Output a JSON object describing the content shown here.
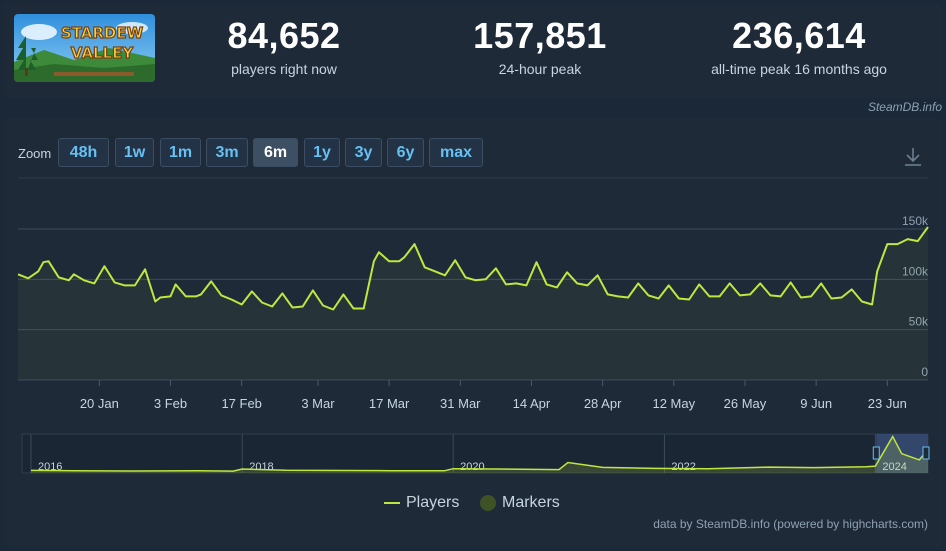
{
  "header": {
    "logo_alt": "STARDEW VALLEY",
    "logo_line1": "STARDEW",
    "logo_line2": "VALLEY",
    "stats": [
      {
        "value": "84,652",
        "label": "players right now"
      },
      {
        "value": "157,851",
        "label": "24-hour peak"
      },
      {
        "value": "236,614",
        "label": "all-time peak 16 months ago"
      }
    ],
    "site_credit": "SteamDB.info"
  },
  "zoom": {
    "label": "Zoom",
    "buttons": [
      "48h",
      "1w",
      "1m",
      "3m",
      "6m",
      "1y",
      "3y",
      "6y",
      "max"
    ],
    "active": "6m"
  },
  "colors": {
    "series": "#c0e640",
    "accent": "#66c0f4",
    "navigator_selection": "#3a4f7a"
  },
  "chart_data": {
    "type": "line",
    "title": "",
    "xlabel": "",
    "ylabel": "",
    "series": [
      {
        "name": "Players",
        "points": [
          [
            "2024-01-04",
            105000
          ],
          [
            "2024-01-06",
            101000
          ],
          [
            "2024-01-08",
            108000
          ],
          [
            "2024-01-09",
            117000
          ],
          [
            "2024-01-10",
            118000
          ],
          [
            "2024-01-12",
            102000
          ],
          [
            "2024-01-14",
            99000
          ],
          [
            "2024-01-15",
            105000
          ],
          [
            "2024-01-17",
            99000
          ],
          [
            "2024-01-19",
            96000
          ],
          [
            "2024-01-21",
            113000
          ],
          [
            "2024-01-23",
            97000
          ],
          [
            "2024-01-25",
            94000
          ],
          [
            "2024-01-27",
            94000
          ],
          [
            "2024-01-29",
            110000
          ],
          [
            "2024-01-31",
            78000
          ],
          [
            "2024-02-01",
            82000
          ],
          [
            "2024-02-03",
            83000
          ],
          [
            "2024-02-04",
            95000
          ],
          [
            "2024-02-06",
            83000
          ],
          [
            "2024-02-08",
            83000
          ],
          [
            "2024-02-09",
            85000
          ],
          [
            "2024-02-11",
            98000
          ],
          [
            "2024-02-13",
            84000
          ],
          [
            "2024-02-15",
            80000
          ],
          [
            "2024-02-17",
            75000
          ],
          [
            "2024-02-19",
            88000
          ],
          [
            "2024-02-21",
            77000
          ],
          [
            "2024-02-23",
            73000
          ],
          [
            "2024-02-25",
            86000
          ],
          [
            "2024-02-27",
            72000
          ],
          [
            "2024-02-29",
            73000
          ],
          [
            "2024-03-02",
            89000
          ],
          [
            "2024-03-04",
            74000
          ],
          [
            "2024-03-06",
            70000
          ],
          [
            "2024-03-08",
            85000
          ],
          [
            "2024-03-10",
            71000
          ],
          [
            "2024-03-12",
            71000
          ],
          [
            "2024-03-14",
            118000
          ],
          [
            "2024-03-15",
            127000
          ],
          [
            "2024-03-17",
            118000
          ],
          [
            "2024-03-19",
            118000
          ],
          [
            "2024-03-20",
            122000
          ],
          [
            "2024-03-22",
            135000
          ],
          [
            "2024-03-24",
            112000
          ],
          [
            "2024-03-26",
            108000
          ],
          [
            "2024-03-28",
            104000
          ],
          [
            "2024-03-30",
            119000
          ],
          [
            "2024-04-01",
            102000
          ],
          [
            "2024-04-03",
            99000
          ],
          [
            "2024-04-05",
            100000
          ],
          [
            "2024-04-07",
            111000
          ],
          [
            "2024-04-09",
            95000
          ],
          [
            "2024-04-11",
            96000
          ],
          [
            "2024-04-13",
            94000
          ],
          [
            "2024-04-15",
            117000
          ],
          [
            "2024-04-17",
            95000
          ],
          [
            "2024-04-19",
            92000
          ],
          [
            "2024-04-21",
            107000
          ],
          [
            "2024-04-23",
            96000
          ],
          [
            "2024-04-25",
            94000
          ],
          [
            "2024-04-27",
            104000
          ],
          [
            "2024-04-29",
            85000
          ],
          [
            "2024-05-01",
            83000
          ],
          [
            "2024-05-03",
            82000
          ],
          [
            "2024-05-05",
            96000
          ],
          [
            "2024-05-07",
            84000
          ],
          [
            "2024-05-09",
            81000
          ],
          [
            "2024-05-11",
            94000
          ],
          [
            "2024-05-13",
            81000
          ],
          [
            "2024-05-15",
            80000
          ],
          [
            "2024-05-17",
            95000
          ],
          [
            "2024-05-19",
            83000
          ],
          [
            "2024-05-21",
            83000
          ],
          [
            "2024-05-23",
            96000
          ],
          [
            "2024-05-25",
            84000
          ],
          [
            "2024-05-27",
            85000
          ],
          [
            "2024-05-29",
            96000
          ],
          [
            "2024-05-31",
            84000
          ],
          [
            "2024-06-02",
            83000
          ],
          [
            "2024-06-04",
            97000
          ],
          [
            "2024-06-06",
            82000
          ],
          [
            "2024-06-08",
            83000
          ],
          [
            "2024-06-10",
            96000
          ],
          [
            "2024-06-12",
            81000
          ],
          [
            "2024-06-14",
            82000
          ],
          [
            "2024-06-16",
            90000
          ],
          [
            "2024-06-18",
            78000
          ],
          [
            "2024-06-20",
            75000
          ],
          [
            "2024-06-21",
            108000
          ],
          [
            "2024-06-23",
            135000
          ],
          [
            "2024-06-25",
            135000
          ],
          [
            "2024-06-27",
            140000
          ],
          [
            "2024-06-29",
            138000
          ],
          [
            "2024-07-01",
            152000
          ]
        ]
      }
    ],
    "x_ticks": [
      "20 Jan",
      "3 Feb",
      "17 Feb",
      "3 Mar",
      "17 Mar",
      "31 Mar",
      "14 Apr",
      "28 Apr",
      "12 May",
      "26 May",
      "9 Jun",
      "23 Jun"
    ],
    "y_ticks": [
      "0",
      "50k",
      "100k",
      "150k"
    ],
    "ylim": [
      0,
      150000
    ],
    "grid": true,
    "navigator": {
      "x_ticks": [
        "2016",
        "2018",
        "2020",
        "2022",
        "2024"
      ],
      "points": [
        [
          "2016-01",
          17000
        ],
        [
          "2016-06",
          14000
        ],
        [
          "2017-01",
          13000
        ],
        [
          "2017-08",
          14000
        ],
        [
          "2017-12",
          12000
        ],
        [
          "2018-01",
          26000
        ],
        [
          "2018-06",
          18000
        ],
        [
          "2019-01",
          16000
        ],
        [
          "2019-06",
          15000
        ],
        [
          "2019-12",
          14000
        ],
        [
          "2020-01",
          28000
        ],
        [
          "2020-06",
          26000
        ],
        [
          "2021-01",
          22000
        ],
        [
          "2021-02",
          68000
        ],
        [
          "2021-06",
          36000
        ],
        [
          "2021-12",
          30000
        ],
        [
          "2022-06",
          28000
        ],
        [
          "2023-01",
          38000
        ],
        [
          "2023-06",
          35000
        ],
        [
          "2023-12",
          40000
        ],
        [
          "2024-01",
          45000
        ],
        [
          "2024-03",
          236614
        ],
        [
          "2024-04",
          125000
        ],
        [
          "2024-06",
          85000
        ],
        [
          "2024-07",
          152000
        ]
      ],
      "ylim": [
        0,
        240000
      ]
    }
  },
  "legend": {
    "players": "Players",
    "markers": "Markers"
  },
  "chart_credit": "data by SteamDB.info (powered by highcharts.com)"
}
